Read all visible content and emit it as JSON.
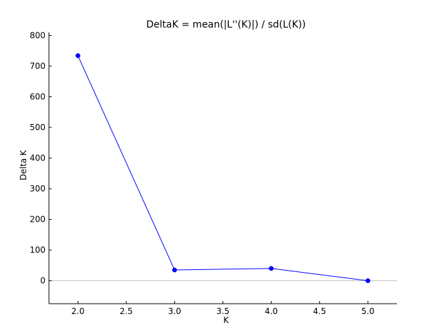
{
  "chart_data": {
    "type": "line",
    "title": "DeltaK = mean(|L''(K)|) / sd(L(K))",
    "xlabel": "K",
    "ylabel": "Delta K",
    "x": [
      2.0,
      3.0,
      4.0,
      5.0
    ],
    "series": [
      {
        "values": [
          734,
          35,
          40,
          0
        ]
      }
    ],
    "xlim": [
      1.7,
      5.3
    ],
    "ylim": [
      -75,
      810
    ],
    "xticks": [
      "2.0",
      "2.5",
      "3.0",
      "3.5",
      "4.0",
      "4.5",
      "5.0"
    ],
    "xtick_values": [
      2.0,
      2.5,
      3.0,
      3.5,
      4.0,
      4.5,
      5.0
    ],
    "yticks": [
      "0",
      "100",
      "200",
      "300",
      "400",
      "500",
      "600",
      "700",
      "800"
    ],
    "ytick_values": [
      0,
      100,
      200,
      300,
      400,
      500,
      600,
      700,
      800
    ],
    "zero_line": true,
    "grid": false,
    "legend": "none",
    "colors": {
      "series": "#0000ff",
      "zero_line": "#bfbfbf",
      "axes": "#000000"
    }
  }
}
